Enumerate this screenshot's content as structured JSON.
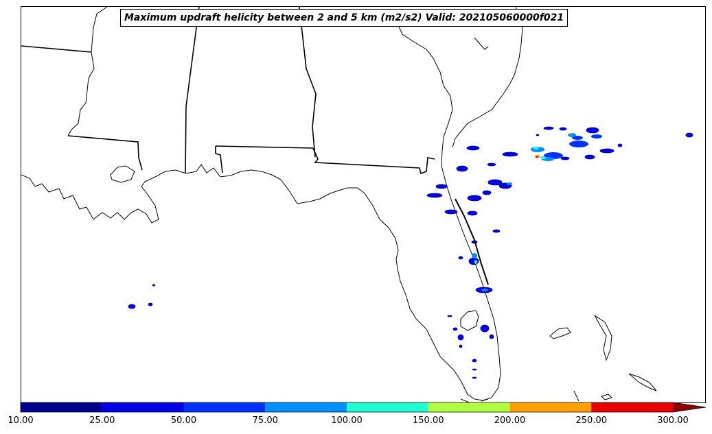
{
  "title": "Maximum updraft helicity between 2 and 5 km (m2/s2) Valid: 202105060000f021",
  "colorbar": {
    "labels": [
      "10.00",
      "25.00",
      "50.00",
      "75.00",
      "100.00",
      "150.00",
      "200.00",
      "250.00",
      "300.00"
    ],
    "colors": [
      "#00008f",
      "#0000e8",
      "#0033ff",
      "#0090ff",
      "#20ffd0",
      "#b0ff40",
      "#ffa000",
      "#e80000",
      "#8f0000"
    ],
    "extend": "max"
  },
  "map": {
    "region": "Southeastern United States (Florida, Georgia, Alabama, Mississippi, Louisiana)",
    "coastline_color": "#000000",
    "state_border_color": "#000000"
  }
}
